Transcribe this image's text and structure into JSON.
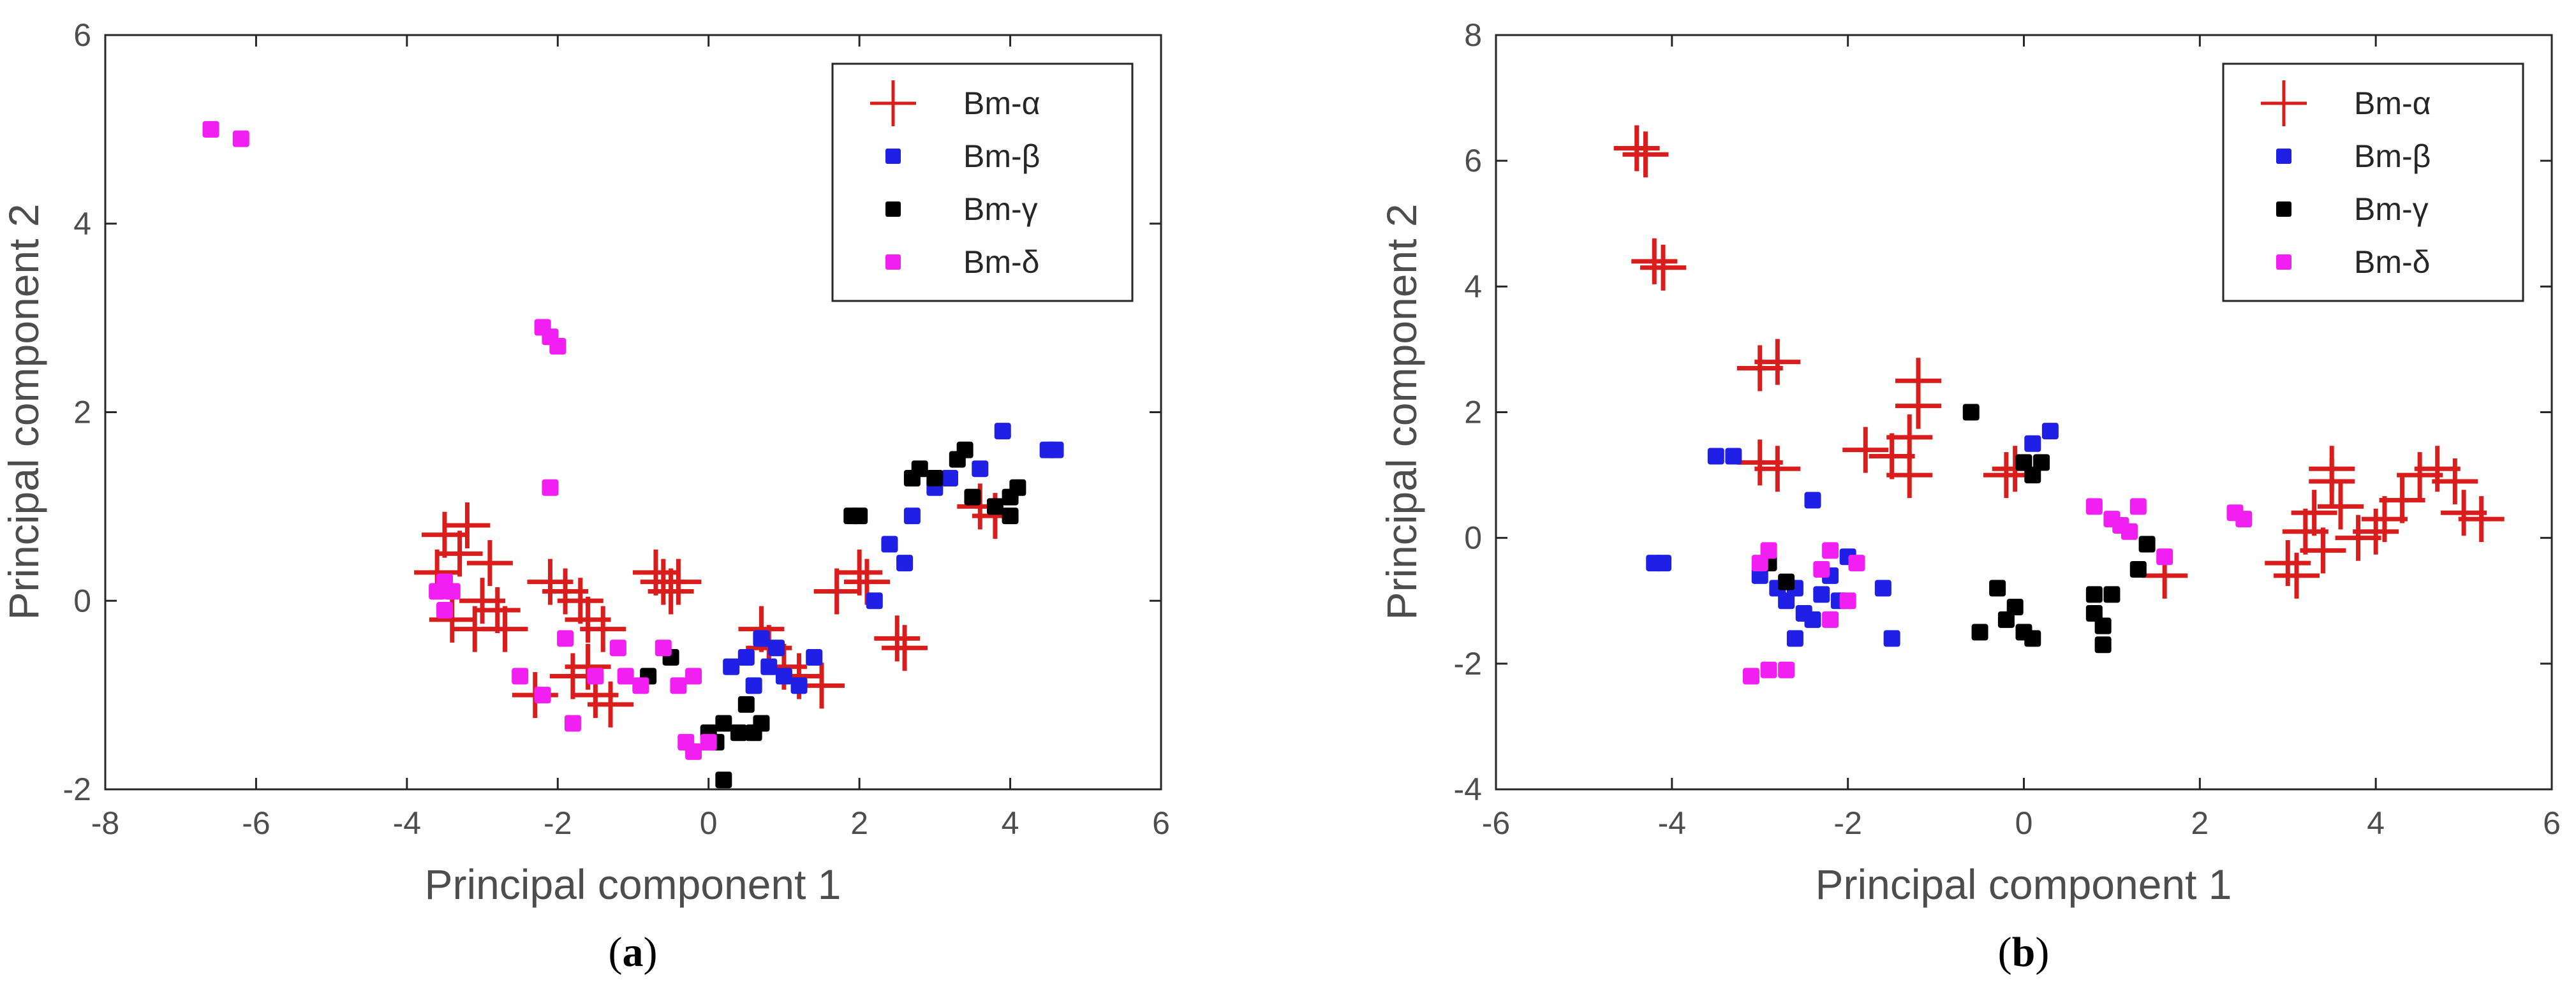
{
  "colors": {
    "alpha": "#d91c1c",
    "beta": "#1f1fe6",
    "gamma": "#000000",
    "delta": "#f21ff2",
    "axis": "#262626",
    "tick_text": "#4d4d4d"
  },
  "chart_data": [
    {
      "type": "scatter",
      "caption_letter": "a",
      "xlabel": "Principal component 1",
      "ylabel": "Principal component 2",
      "xlim": [
        -8,
        6
      ],
      "ylim": [
        -2,
        6
      ],
      "xticks": [
        "-8",
        "-6",
        "-4",
        "-2",
        "0",
        "2",
        "4",
        "6"
      ],
      "yticks": [
        "-2",
        "0",
        "2",
        "4",
        "6"
      ],
      "legend_position": "top-right",
      "series": [
        {
          "name": "Bm-α",
          "key": "alpha",
          "marker": "plus",
          "points": [
            [
              -3.5,
              0.7
            ],
            [
              -3.2,
              0.8
            ],
            [
              -3.6,
              0.3
            ],
            [
              -3.4,
              -0.2
            ],
            [
              -3.1,
              -0.3
            ],
            [
              -3.0,
              0.0
            ],
            [
              -2.8,
              -0.1
            ],
            [
              -2.7,
              -0.3
            ],
            [
              -3.3,
              0.5
            ],
            [
              -2.9,
              0.4
            ],
            [
              -2.3,
              -1.0
            ],
            [
              -2.1,
              0.2
            ],
            [
              -1.9,
              0.1
            ],
            [
              -1.7,
              0.0
            ],
            [
              -1.6,
              -0.2
            ],
            [
              -1.4,
              -0.3
            ],
            [
              -1.8,
              -0.8
            ],
            [
              -1.5,
              -1.0
            ],
            [
              -1.3,
              -1.1
            ],
            [
              -1.6,
              -0.7
            ],
            [
              -0.7,
              0.3
            ],
            [
              -0.6,
              0.2
            ],
            [
              -0.5,
              0.1
            ],
            [
              -0.4,
              0.2
            ],
            [
              0.7,
              -0.3
            ],
            [
              0.8,
              -0.5
            ],
            [
              1.0,
              -0.7
            ],
            [
              1.2,
              -0.8
            ],
            [
              1.5,
              -0.9
            ],
            [
              1.7,
              0.1
            ],
            [
              2.0,
              0.3
            ],
            [
              2.1,
              0.2
            ],
            [
              2.5,
              -0.4
            ],
            [
              2.6,
              -0.5
            ],
            [
              3.6,
              1.0
            ],
            [
              3.8,
              0.9
            ]
          ]
        },
        {
          "name": "Bm-β",
          "key": "beta",
          "marker": "square",
          "points": [
            [
              0.3,
              -0.7
            ],
            [
              0.5,
              -0.6
            ],
            [
              0.6,
              -0.9
            ],
            [
              0.8,
              -0.7
            ],
            [
              0.9,
              -0.5
            ],
            [
              1.0,
              -0.8
            ],
            [
              1.2,
              -0.9
            ],
            [
              1.4,
              -0.6
            ],
            [
              0.7,
              -0.4
            ],
            [
              2.2,
              0.0
            ],
            [
              2.4,
              0.6
            ],
            [
              2.7,
              0.9
            ],
            [
              3.0,
              1.2
            ],
            [
              3.2,
              1.3
            ],
            [
              3.6,
              1.4
            ],
            [
              3.9,
              1.8
            ],
            [
              4.5,
              1.6
            ],
            [
              4.6,
              1.6
            ],
            [
              2.6,
              0.4
            ]
          ]
        },
        {
          "name": "Bm-γ",
          "key": "gamma",
          "marker": "square",
          "points": [
            [
              0.0,
              -1.4
            ],
            [
              0.1,
              -1.5
            ],
            [
              0.2,
              -1.3
            ],
            [
              0.4,
              -1.4
            ],
            [
              0.6,
              -1.4
            ],
            [
              0.7,
              -1.3
            ],
            [
              0.5,
              -1.1
            ],
            [
              0.2,
              -1.9
            ],
            [
              1.9,
              0.9
            ],
            [
              2.0,
              0.9
            ],
            [
              2.7,
              1.3
            ],
            [
              2.8,
              1.4
            ],
            [
              3.0,
              1.3
            ],
            [
              3.3,
              1.5
            ],
            [
              3.4,
              1.6
            ],
            [
              3.5,
              1.1
            ],
            [
              3.8,
              1.0
            ],
            [
              4.0,
              1.1
            ],
            [
              4.1,
              1.2
            ],
            [
              4.0,
              0.9
            ],
            [
              -0.8,
              -0.8
            ],
            [
              -0.5,
              -0.6
            ]
          ]
        },
        {
          "name": "Bm-δ",
          "key": "delta",
          "marker": "square",
          "points": [
            [
              -6.6,
              5.0
            ],
            [
              -6.2,
              4.9
            ],
            [
              -2.2,
              2.9
            ],
            [
              -2.1,
              2.8
            ],
            [
              -2.0,
              2.7
            ],
            [
              -2.1,
              1.2
            ],
            [
              -3.6,
              0.1
            ],
            [
              -3.5,
              0.2
            ],
            [
              -3.4,
              0.1
            ],
            [
              -3.5,
              -0.1
            ],
            [
              -2.5,
              -0.8
            ],
            [
              -2.2,
              -1.0
            ],
            [
              -1.8,
              -1.3
            ],
            [
              -1.5,
              -0.8
            ],
            [
              -1.2,
              -0.5
            ],
            [
              -0.9,
              -0.9
            ],
            [
              -0.6,
              -0.5
            ],
            [
              -0.4,
              -0.9
            ],
            [
              -0.2,
              -0.8
            ],
            [
              -0.3,
              -1.5
            ],
            [
              -0.2,
              -1.6
            ],
            [
              0.0,
              -1.5
            ],
            [
              -1.9,
              -0.4
            ],
            [
              -1.1,
              -0.8
            ]
          ]
        }
      ]
    },
    {
      "type": "scatter",
      "caption_letter": "b",
      "xlabel": "Principal component 1",
      "ylabel": "Principal component 2",
      "xlim": [
        -6,
        6
      ],
      "ylim": [
        -4,
        8
      ],
      "xticks": [
        "-6",
        "-4",
        "-2",
        "0",
        "2",
        "4",
        "6"
      ],
      "yticks": [
        "-4",
        "-2",
        "0",
        "2",
        "4",
        "6",
        "8"
      ],
      "legend_position": "top-right",
      "series": [
        {
          "name": "Bm-α",
          "key": "alpha",
          "marker": "plus",
          "points": [
            [
              -4.4,
              6.2
            ],
            [
              -4.3,
              6.1
            ],
            [
              -4.2,
              4.4
            ],
            [
              -4.1,
              4.3
            ],
            [
              -3.0,
              2.7
            ],
            [
              -2.8,
              2.8
            ],
            [
              -3.0,
              1.2
            ],
            [
              -2.8,
              1.1
            ],
            [
              -1.8,
              1.4
            ],
            [
              -1.5,
              1.3
            ],
            [
              -1.3,
              1.6
            ],
            [
              -1.2,
              2.1
            ],
            [
              -1.2,
              2.5
            ],
            [
              -1.3,
              1.0
            ],
            [
              -0.2,
              1.0
            ],
            [
              -0.1,
              1.1
            ],
            [
              1.6,
              -0.6
            ],
            [
              3.0,
              -0.4
            ],
            [
              3.1,
              -0.6
            ],
            [
              3.2,
              0.1
            ],
            [
              3.3,
              0.4
            ],
            [
              3.5,
              0.9
            ],
            [
              3.5,
              1.1
            ],
            [
              3.6,
              0.5
            ],
            [
              3.8,
              0.0
            ],
            [
              4.0,
              0.1
            ],
            [
              4.1,
              0.3
            ],
            [
              4.3,
              0.6
            ],
            [
              4.5,
              1.0
            ],
            [
              4.7,
              1.1
            ],
            [
              4.9,
              0.9
            ],
            [
              5.0,
              0.4
            ],
            [
              5.2,
              0.3
            ],
            [
              3.4,
              -0.2
            ]
          ]
        },
        {
          "name": "Bm-β",
          "key": "beta",
          "marker": "square",
          "points": [
            [
              -4.2,
              -0.4
            ],
            [
              -4.1,
              -0.4
            ],
            [
              -3.5,
              1.3
            ],
            [
              -3.3,
              1.3
            ],
            [
              -3.0,
              -0.6
            ],
            [
              -2.8,
              -0.8
            ],
            [
              -2.7,
              -1.0
            ],
            [
              -2.6,
              -0.8
            ],
            [
              -2.5,
              -1.2
            ],
            [
              -2.4,
              -1.3
            ],
            [
              -2.3,
              -0.9
            ],
            [
              -2.2,
              -0.6
            ],
            [
              -2.1,
              -1.0
            ],
            [
              -2.0,
              -0.3
            ],
            [
              -1.6,
              -0.8
            ],
            [
              -1.5,
              -1.6
            ],
            [
              -2.4,
              0.6
            ],
            [
              0.1,
              1.5
            ],
            [
              0.3,
              1.7
            ],
            [
              -2.6,
              -1.6
            ]
          ]
        },
        {
          "name": "Bm-γ",
          "key": "gamma",
          "marker": "square",
          "points": [
            [
              -0.6,
              2.0
            ],
            [
              0.0,
              1.2
            ],
            [
              0.1,
              1.0
            ],
            [
              0.2,
              1.2
            ],
            [
              -0.3,
              -0.8
            ],
            [
              -0.2,
              -1.3
            ],
            [
              -0.1,
              -1.1
            ],
            [
              0.0,
              -1.5
            ],
            [
              0.1,
              -1.6
            ],
            [
              -0.5,
              -1.5
            ],
            [
              0.8,
              -1.2
            ],
            [
              0.9,
              -1.4
            ],
            [
              1.0,
              -0.9
            ],
            [
              0.9,
              -1.7
            ],
            [
              0.8,
              -0.9
            ],
            [
              1.3,
              -0.5
            ],
            [
              1.4,
              -0.1
            ],
            [
              -2.9,
              -0.4
            ],
            [
              -2.7,
              -0.7
            ]
          ]
        },
        {
          "name": "Bm-δ",
          "key": "delta",
          "marker": "square",
          "points": [
            [
              -3.1,
              -2.2
            ],
            [
              -2.9,
              -2.1
            ],
            [
              -2.7,
              -2.1
            ],
            [
              -3.0,
              -0.4
            ],
            [
              -2.9,
              -0.2
            ],
            [
              -2.3,
              -0.5
            ],
            [
              -2.2,
              -0.2
            ],
            [
              -1.9,
              -0.4
            ],
            [
              -2.0,
              -1.0
            ],
            [
              -2.2,
              -1.3
            ],
            [
              0.8,
              0.5
            ],
            [
              1.0,
              0.3
            ],
            [
              1.1,
              0.2
            ],
            [
              1.2,
              0.1
            ],
            [
              1.3,
              0.5
            ],
            [
              1.6,
              -0.3
            ],
            [
              2.4,
              0.4
            ],
            [
              2.5,
              0.3
            ]
          ]
        }
      ]
    }
  ]
}
